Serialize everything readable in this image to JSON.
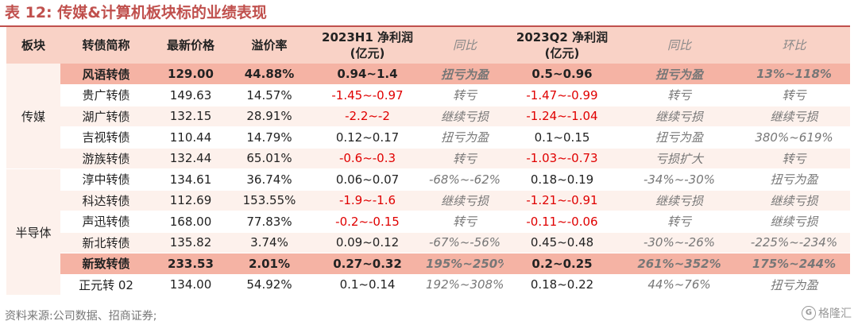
{
  "title": "表 12:  传媒&计算机板块标的业绩表现",
  "header": {
    "sector": "板块",
    "name": "转债简称",
    "price": "最新价格",
    "premium": "溢价率",
    "h1_profit": "2023H1 净利润",
    "h1_unit": "(亿元)",
    "h1_yoy": "同比",
    "q2_profit": "2023Q2 净利润",
    "q2_unit": "(亿元)",
    "q2_yoy": "同比",
    "q2_qoq": "环比"
  },
  "groups": {
    "media": "传媒",
    "semi": "半导体"
  },
  "rows": [
    {
      "name": "风语转债",
      "price": "129.00",
      "premium": "44.88%",
      "h1": "0.94~1.4",
      "h1_yoy": "扭亏为盈",
      "q2": "0.5~0.96",
      "q2_yoy": "扭亏为盈",
      "q2_qoq": "13%~118%"
    },
    {
      "name": "贵广转债",
      "price": "149.63",
      "premium": "14.57%",
      "h1": "-1.45~-0.97",
      "h1_yoy": "转亏",
      "q2": "-1.47~-0.99",
      "q2_yoy": "转亏",
      "q2_qoq": "转亏"
    },
    {
      "name": "湖广转债",
      "price": "132.15",
      "premium": "28.91%",
      "h1": "-2.2~-2",
      "h1_yoy": "继续亏损",
      "q2": "-1.24~-1.04",
      "q2_yoy": "继续亏损",
      "q2_qoq": "继续亏损"
    },
    {
      "name": "吉视转债",
      "price": "110.44",
      "premium": "14.79%",
      "h1": "0.12~0.17",
      "h1_yoy": "扭亏为盈",
      "q2": "0.1~0.15",
      "q2_yoy": "扭亏为盈",
      "q2_qoq": "380%~619%"
    },
    {
      "name": "游族转债",
      "price": "132.44",
      "premium": "65.01%",
      "h1": "-0.6~-0.3",
      "h1_yoy": "转亏",
      "q2": "-1.03~-0.73",
      "q2_yoy": "亏损扩大",
      "q2_qoq": "转亏"
    },
    {
      "name": "淳中转债",
      "price": "134.61",
      "premium": "36.74%",
      "h1": "0.06~0.07",
      "h1_yoy": "-68%~-62%",
      "q2": "0.18~0.19",
      "q2_yoy": "-34%~-30%",
      "q2_qoq": "扭亏为盈"
    },
    {
      "name": "科达转债",
      "price": "112.69",
      "premium": "153.55%",
      "h1": "-1.9~-1.6",
      "h1_yoy": "继续亏损",
      "q2": "-1.21~-0.91",
      "q2_yoy": "继续亏损",
      "q2_qoq": "继续亏损"
    },
    {
      "name": "声迅转债",
      "price": "168.00",
      "premium": "77.83%",
      "h1": "-0.2~-0.15",
      "h1_yoy": "转亏",
      "q2": "-0.11~-0.06",
      "q2_yoy": "转亏",
      "q2_qoq": "继续亏损"
    },
    {
      "name": "新北转债",
      "price": "135.82",
      "premium": "3.74%",
      "h1": "0.09~0.12",
      "h1_yoy": "-67%~-56%",
      "q2": "0.45~0.48",
      "q2_yoy": "-30%~-26%",
      "q2_qoq": "-225%~-234%"
    },
    {
      "name": "新致转债",
      "price": "233.53",
      "premium": "2.01%",
      "h1": "0.27~0.32",
      "h1_yoy": "195%~250%",
      "q2": "0.2~0.25",
      "q2_yoy": "261%~352%",
      "q2_qoq": "175%~244%"
    },
    {
      "name": "正元转 02",
      "price": "134.00",
      "premium": "54.92%",
      "h1": "0.1~0.14",
      "h1_yoy": "192%~308%",
      "q2": "0.18~0.22",
      "q2_yoy": "44%~76%",
      "q2_qoq": "扭亏为盈"
    }
  ],
  "source": "资料来源:公司数据、招商证券;",
  "watermark": "格隆汇",
  "watermark_icon": "G"
}
